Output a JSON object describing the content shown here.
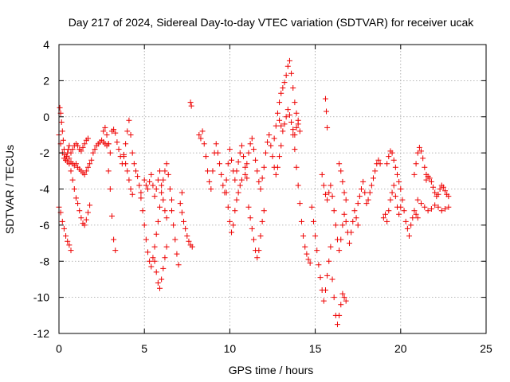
{
  "chart_data": {
    "type": "scatter",
    "title": "Day 217 of 2024, Sidereal Day-to-day VTEC variation (SDTVAR) for receiver ucak",
    "xlabel": "GPS time / hours",
    "ylabel": "SDTVAR / TECUs",
    "xlim": [
      0,
      25
    ],
    "ylim": [
      -12,
      4
    ],
    "xticks": [
      0,
      5,
      10,
      15,
      20,
      25
    ],
    "xtick_labels": [
      "0",
      "5",
      "10",
      "15",
      "20",
      "25"
    ],
    "yticks": [
      -12,
      -10,
      -8,
      -6,
      -4,
      -2,
      0,
      2,
      4
    ],
    "ytick_labels": [
      "-12",
      "-10",
      "-8",
      "-6",
      "-4",
      "-2",
      "0",
      "2",
      "4"
    ],
    "grid": true,
    "marker": "+",
    "color": "#ee0000",
    "series": [
      {
        "name": "ucak",
        "segments": [
          {
            "x": [
              0.0,
              0.1,
              0.2,
              0.3,
              0.4,
              0.5,
              0.6,
              0.7,
              0.8,
              0.9,
              1.0,
              1.1,
              1.2,
              1.3,
              1.4,
              1.5,
              1.6,
              1.7,
              1.8,
              1.9,
              2.0,
              2.1,
              2.2,
              2.3,
              2.4,
              2.5,
              2.6,
              2.7,
              2.8,
              2.9
            ],
            "y": [
              -1.0,
              -1.5,
              -2.0,
              -2.3,
              -2.4,
              -2.5,
              -2.6,
              -2.5,
              -2.6,
              -2.7,
              -2.6,
              -2.8,
              -2.9,
              -3.0,
              -3.1,
              -3.2,
              -3.0,
              -2.8,
              -2.6,
              -2.4,
              -2.0,
              -1.8,
              -1.6,
              -1.5,
              -1.4,
              -1.3,
              -1.4,
              -1.5,
              -1.6,
              -1.5
            ]
          },
          {
            "x": [
              0.05,
              0.1,
              0.15,
              0.2,
              0.25,
              0.3,
              0.35,
              0.4,
              0.45,
              0.5,
              0.55,
              0.6
            ],
            "y": [
              0.5,
              0.2,
              -0.3,
              -0.8,
              -1.3,
              -1.8,
              -2.1,
              -2.4,
              -2.2,
              -2.0,
              -1.8,
              -1.6
            ]
          },
          {
            "x": [
              0.0,
              0.1,
              0.2,
              0.3,
              0.4,
              0.5,
              0.6,
              0.7
            ],
            "y": [
              -5.0,
              -5.3,
              -5.8,
              -6.2,
              -6.6,
              -6.9,
              -7.1,
              -7.4
            ]
          },
          {
            "x": [
              0.7,
              0.8,
              0.9,
              1.0,
              1.1,
              1.2,
              1.3,
              1.4,
              1.5,
              1.6,
              1.7,
              1.8
            ],
            "y": [
              -3.0,
              -3.5,
              -4.0,
              -4.5,
              -4.8,
              -5.2,
              -5.6,
              -5.9,
              -6.0,
              -5.7,
              -5.3,
              -4.9
            ]
          },
          {
            "x": [
              0.6,
              0.7,
              0.8,
              0.9,
              1.0,
              1.1,
              1.2,
              1.3,
              1.4,
              1.5,
              1.6,
              1.7
            ],
            "y": [
              -2.3,
              -2.0,
              -1.8,
              -1.6,
              -1.5,
              -1.6,
              -1.8,
              -1.9,
              -1.7,
              -1.5,
              -1.3,
              -1.2
            ]
          },
          {
            "x": [
              2.6,
              2.7,
              2.8,
              2.9,
              3.0,
              3.1,
              3.2,
              3.3,
              3.4,
              3.5,
              3.6,
              3.7,
              3.8,
              3.9,
              4.0,
              4.1,
              4.2,
              4.3,
              4.4,
              4.5,
              4.6,
              4.7,
              4.8
            ],
            "y": [
              -0.8,
              -0.6,
              -1.0,
              -1.5,
              -2.0,
              -0.8,
              -0.7,
              -0.9,
              -1.4,
              -1.8,
              -2.2,
              -2.6,
              -2.1,
              -1.5,
              -0.8,
              -0.2,
              -1.0,
              -2.0,
              -2.6,
              -3.0,
              -3.3,
              -3.8,
              -4.2
            ]
          },
          {
            "x": [
              2.9,
              3.0,
              3.1,
              3.2,
              3.3
            ],
            "y": [
              -3.0,
              -4.0,
              -5.5,
              -6.8,
              -7.4
            ]
          },
          {
            "x": [
              3.8,
              3.9,
              4.0,
              4.1,
              4.2,
              4.3
            ],
            "y": [
              -2.2,
              -2.6,
              -3.0,
              -3.5,
              -4.0,
              -4.3
            ]
          },
          {
            "x": [
              4.8,
              4.9,
              5.0,
              5.1,
              5.2,
              5.3,
              5.4,
              5.5,
              5.6,
              5.7,
              5.8,
              5.9,
              6.0,
              6.1,
              6.2,
              6.3,
              6.4,
              6.5,
              6.6
            ],
            "y": [
              -4.5,
              -5.2,
              -6.0,
              -6.8,
              -7.5,
              -8.0,
              -8.3,
              -7.8,
              -7.2,
              -6.5,
              -5.8,
              -5.0,
              -4.2,
              -3.5,
              -3.0,
              -2.6,
              -3.2,
              -4.0,
              -4.6
            ]
          },
          {
            "x": [
              5.0,
              5.1,
              5.2,
              5.3,
              5.4,
              5.5,
              5.6,
              5.7,
              5.8,
              5.9,
              6.0,
              6.1,
              6.2,
              6.3
            ],
            "y": [
              -3.5,
              -3.8,
              -4.0,
              -3.6,
              -3.2,
              -3.8,
              -4.4,
              -4.0,
              -3.5,
              -3.0,
              -3.8,
              -4.6,
              -5.2,
              -5.6
            ]
          },
          {
            "x": [
              5.6,
              5.7,
              5.8,
              5.9,
              6.0,
              6.1,
              6.2,
              6.3
            ],
            "y": [
              -8.0,
              -8.6,
              -9.2,
              -9.5,
              -9.0,
              -8.4,
              -7.8,
              -7.2
            ]
          },
          {
            "x": [
              6.6,
              6.7,
              6.8,
              6.9,
              7.0
            ],
            "y": [
              -5.2,
              -6.0,
              -6.8,
              -7.6,
              -8.2
            ]
          },
          {
            "x": [
              7.1,
              7.2,
              7.3,
              7.4,
              7.5,
              7.6,
              7.7,
              7.8
            ],
            "y": [
              -4.8,
              -5.3,
              -5.8,
              -6.2,
              -6.6,
              -6.9,
              -7.1,
              -7.2
            ]
          },
          {
            "x": [
              7.2,
              7.7,
              7.75
            ],
            "y": [
              -4.2,
              0.8,
              0.6
            ]
          },
          {
            "x": [
              8.2,
              8.3,
              8.4,
              8.5,
              8.6,
              8.7,
              8.8,
              8.9,
              9.0,
              9.1,
              9.2,
              9.3,
              9.4,
              9.5,
              9.6,
              9.7,
              9.8,
              9.9,
              10.0,
              10.1,
              10.2,
              10.3,
              10.4,
              10.5,
              10.6,
              10.7,
              10.8,
              10.9,
              11.0
            ],
            "y": [
              -1.0,
              -1.2,
              -0.8,
              -1.5,
              -2.2,
              -3.0,
              -3.6,
              -4.0,
              -3.0,
              -2.0,
              -1.5,
              -2.0,
              -2.6,
              -3.2,
              -3.8,
              -4.2,
              -3.5,
              -2.6,
              -1.8,
              -2.4,
              -3.0,
              -3.5,
              -3.0,
              -2.5,
              -2.0,
              -1.6,
              -2.2,
              -2.8,
              -3.4
            ]
          },
          {
            "x": [
              9.8,
              9.9,
              10.0,
              10.1,
              10.2,
              10.3,
              10.4,
              10.5,
              10.6,
              10.7
            ],
            "y": [
              -4.2,
              -5.0,
              -5.8,
              -6.4,
              -6.0,
              -5.2,
              -4.6,
              -4.2,
              -3.8,
              -3.5
            ]
          },
          {
            "x": [
              10.9,
              11.0,
              11.1,
              11.2,
              11.3,
              11.4,
              11.5,
              11.6,
              11.7,
              11.8,
              11.9,
              12.0,
              12.1,
              12.2,
              12.3,
              12.4,
              12.5,
              12.6,
              12.7,
              12.8,
              12.9,
              13.0
            ],
            "y": [
              -3.2,
              -2.6,
              -2.0,
              -1.5,
              -1.2,
              -1.8,
              -2.4,
              -3.0,
              -3.6,
              -4.0,
              -3.4,
              -2.8,
              -2.0,
              -1.4,
              -1.0,
              -1.6,
              -2.2,
              -2.8,
              -3.2,
              -2.8,
              -2.2,
              -1.6
            ]
          },
          {
            "x": [
              11.1,
              11.2,
              11.3,
              11.4,
              11.5,
              11.6,
              11.7,
              11.8,
              11.9,
              12.0
            ],
            "y": [
              -5.0,
              -5.6,
              -6.2,
              -6.8,
              -7.4,
              -7.8,
              -7.4,
              -6.6,
              -5.8,
              -5.2
            ]
          },
          {
            "x": [
              12.6,
              12.7,
              12.8,
              12.9,
              13.0,
              13.1,
              13.2,
              13.3,
              13.4,
              13.5,
              13.6,
              13.7,
              13.8,
              13.9,
              14.0
            ],
            "y": [
              -1.2,
              -0.5,
              0.2,
              0.8,
              1.3,
              1.6,
              1.9,
              2.3,
              2.8,
              3.1,
              2.4,
              1.6,
              0.8,
              0.2,
              -0.4
            ]
          },
          {
            "x": [
              12.9,
              13.0,
              13.1,
              13.2,
              13.3,
              13.4,
              13.5,
              13.6,
              13.7,
              13.8,
              13.9,
              14.0,
              14.1
            ],
            "y": [
              -0.2,
              -0.5,
              -0.8,
              -0.4,
              0.0,
              0.4,
              0.1,
              -0.3,
              -0.7,
              -1.0,
              -0.6,
              -0.2,
              -0.8
            ]
          },
          {
            "x": [
              13.7,
              13.8,
              13.9,
              14.0,
              14.1,
              14.2,
              14.3,
              14.4,
              14.5,
              14.6,
              14.7
            ],
            "y": [
              -1.0,
              -1.8,
              -2.8,
              -3.8,
              -4.8,
              -5.8,
              -6.6,
              -7.2,
              -7.6,
              -7.9,
              -8.1
            ]
          },
          {
            "x": [
              14.8,
              14.9,
              15.0,
              15.1,
              15.2,
              15.3,
              15.4,
              15.5,
              15.6,
              15.7,
              15.8,
              15.9
            ],
            "y": [
              -5.0,
              -5.8,
              -6.6,
              -7.4,
              -8.2,
              -8.9,
              -9.6,
              -10.2,
              -9.6,
              -8.8,
              -8.0,
              -7.2
            ]
          },
          {
            "x": [
              15.4,
              15.5,
              15.6,
              15.7,
              15.8,
              15.9,
              16.0,
              16.1,
              16.2,
              16.3,
              16.4,
              16.5,
              16.6,
              16.7,
              16.8,
              16.9,
              17.0,
              17.1,
              17.2,
              17.3,
              17.4,
              17.5
            ],
            "y": [
              -3.2,
              -3.8,
              -4.3,
              -4.6,
              -4.2,
              -3.8,
              -4.4,
              -5.2,
              -6.0,
              -6.8,
              -7.4,
              -6.8,
              -6.0,
              -5.4,
              -5.8,
              -6.4,
              -7.0,
              -6.4,
              -5.8,
              -5.2,
              -5.6,
              -6.0
            ]
          },
          {
            "x": [
              15.6,
              15.65,
              15.7
            ],
            "y": [
              1.0,
              0.3,
              -0.6
            ]
          },
          {
            "x": [
              16.0,
              16.1,
              16.2,
              16.3,
              16.4,
              16.5,
              16.6,
              16.7,
              16.8
            ],
            "y": [
              -9.0,
              -10.0,
              -11.0,
              -11.5,
              -11.0,
              -10.4,
              -9.8,
              -10.0,
              -10.2
            ]
          },
          {
            "x": [
              16.4,
              16.5,
              16.6,
              16.7,
              16.8
            ],
            "y": [
              -2.6,
              -3.0,
              -3.6,
              -4.2,
              -4.6
            ]
          },
          {
            "x": [
              17.5,
              17.6,
              17.7,
              17.8,
              17.9,
              18.0,
              18.1,
              18.2,
              18.3,
              18.4,
              18.5,
              18.6,
              18.7,
              18.8
            ],
            "y": [
              -4.8,
              -4.4,
              -4.0,
              -3.6,
              -4.2,
              -4.8,
              -4.6,
              -4.2,
              -3.8,
              -3.4,
              -3.0,
              -2.6,
              -2.4,
              -2.6
            ]
          },
          {
            "x": [
              19.0,
              19.1,
              19.2,
              19.3,
              19.4,
              19.5,
              19.6,
              19.7,
              19.8,
              19.9,
              20.0,
              20.1,
              20.2,
              20.3,
              20.4,
              20.5,
              20.6,
              20.7,
              20.8,
              20.9,
              21.0
            ],
            "y": [
              -5.6,
              -5.4,
              -5.8,
              -5.2,
              -4.6,
              -4.2,
              -3.8,
              -4.4,
              -5.0,
              -5.4,
              -5.0,
              -4.6,
              -5.2,
              -5.8,
              -6.2,
              -6.6,
              -6.0,
              -5.6,
              -5.2,
              -5.4,
              -5.6
            ]
          },
          {
            "x": [
              19.2,
              19.3,
              19.4,
              19.5,
              19.6,
              19.7,
              19.8,
              19.9,
              20.0
            ],
            "y": [
              -2.6,
              -2.2,
              -1.9,
              -2.0,
              -2.4,
              -2.8,
              -3.2,
              -3.6,
              -4.0
            ]
          },
          {
            "x": [
              20.8,
              20.9,
              21.0,
              21.1,
              21.2,
              21.3,
              21.4,
              21.5
            ],
            "y": [
              -3.2,
              -2.6,
              -2.0,
              -1.7,
              -1.9,
              -2.3,
              -2.8,
              -3.2
            ]
          },
          {
            "x": [
              21.0,
              21.2,
              21.4,
              21.6,
              21.8,
              22.0,
              22.2,
              22.4,
              22.6,
              22.8
            ],
            "y": [
              -4.6,
              -4.8,
              -5.0,
              -5.2,
              -5.1,
              -4.9,
              -5.0,
              -5.2,
              -5.1,
              -5.0
            ]
          },
          {
            "x": [
              21.5,
              21.6,
              21.7,
              21.8,
              21.9,
              22.0,
              22.1,
              22.2,
              22.3,
              22.4,
              22.5,
              22.6,
              22.7,
              22.8
            ],
            "y": [
              -3.5,
              -3.3,
              -3.4,
              -3.6,
              -3.9,
              -4.2,
              -4.4,
              -4.3,
              -4.0,
              -3.8,
              -3.9,
              -4.1,
              -4.3,
              -4.4
            ]
          }
        ]
      }
    ]
  }
}
